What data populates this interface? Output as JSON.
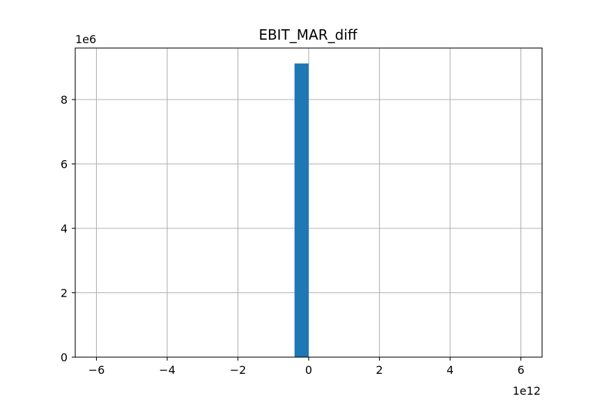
{
  "chart_data": {
    "type": "bar",
    "title": "EBIT_MAR_diff",
    "xlabel": "",
    "ylabel": "",
    "x_multiplier_label": "1e12",
    "y_multiplier_label": "1e6",
    "xlim": [
      -6.6,
      6.6
    ],
    "ylim": [
      0,
      9.6
    ],
    "x_ticks": [
      -6,
      -4,
      -2,
      0,
      2,
      4,
      6
    ],
    "x_tick_labels": [
      "−6",
      "−4",
      "−2",
      "0",
      "2",
      "4",
      "6"
    ],
    "y_ticks": [
      0,
      2,
      4,
      6,
      8
    ],
    "y_tick_labels": [
      "0",
      "2",
      "4",
      "6",
      "8"
    ],
    "grid": true,
    "bar_color": "#1f77b4",
    "bins": [
      {
        "x0": -0.4,
        "x1": 0.0,
        "count": 9.12
      }
    ]
  }
}
